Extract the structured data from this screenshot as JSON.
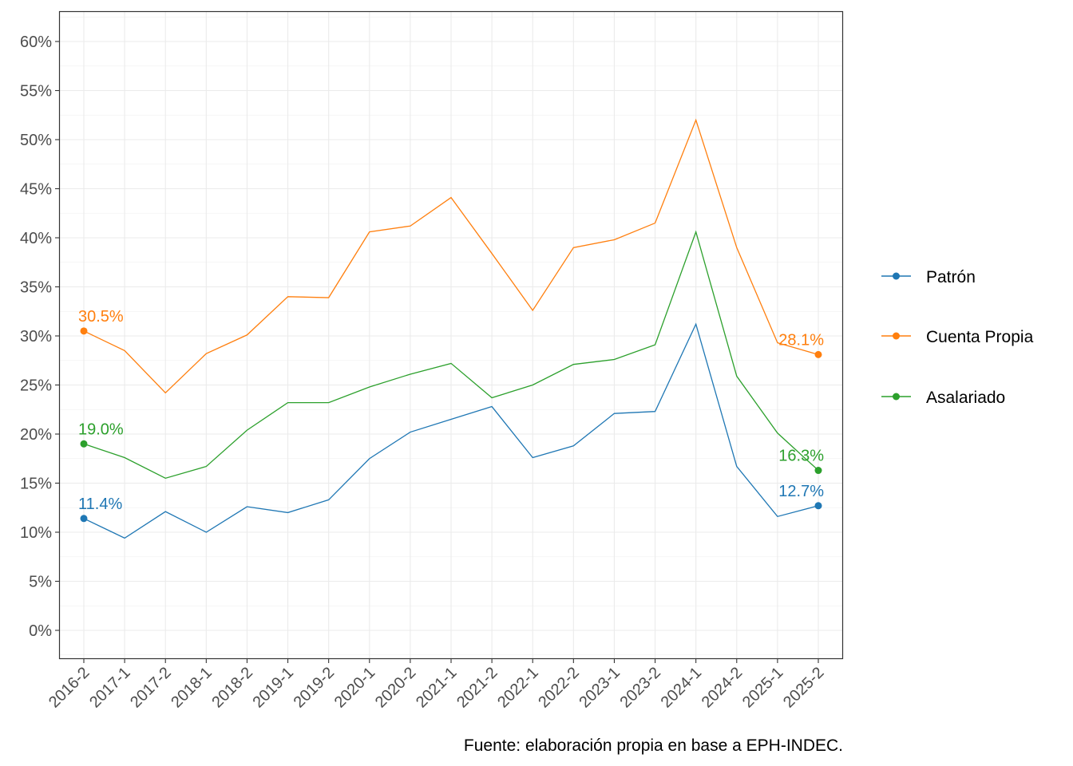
{
  "chart_data": {
    "type": "line",
    "title": "",
    "xlabel": "",
    "ylabel": "",
    "ylim": [
      -2.9,
      63
    ],
    "yticks": [
      0,
      5,
      10,
      15,
      20,
      25,
      30,
      35,
      40,
      45,
      50,
      55,
      60
    ],
    "ytick_labels": [
      "0%",
      "5%",
      "10%",
      "15%",
      "20%",
      "25%",
      "30%",
      "35%",
      "40%",
      "45%",
      "50%",
      "55%",
      "60%"
    ],
    "categories": [
      "2016-2",
      "2017-1",
      "2017-2",
      "2018-1",
      "2018-2",
      "2019-1",
      "2019-2",
      "2020-1",
      "2020-2",
      "2021-1",
      "2021-2",
      "2022-1",
      "2022-2",
      "2023-1",
      "2023-2",
      "2024-1",
      "2024-2",
      "2025-1",
      "2025-2"
    ],
    "grid": true,
    "legend_position": "right",
    "series": [
      {
        "name": "Patrón",
        "color": "#1f77b4",
        "values": [
          11.4,
          9.4,
          12.1,
          10.0,
          12.6,
          12.0,
          13.3,
          17.5,
          20.2,
          21.5,
          22.8,
          17.6,
          18.8,
          22.1,
          22.3,
          31.2,
          16.7,
          11.6,
          12.7
        ],
        "labels": {
          "first": "11.4%",
          "last": "12.7%"
        }
      },
      {
        "name": "Cuenta Propia",
        "color": "#ff7f0e",
        "values": [
          30.5,
          28.5,
          24.2,
          28.2,
          30.1,
          34.0,
          33.9,
          40.6,
          41.2,
          44.1,
          38.4,
          32.6,
          39.0,
          39.8,
          41.5,
          52.0,
          39.0,
          29.3,
          28.1
        ],
        "labels": {
          "first": "30.5%",
          "last": "28.1%"
        }
      },
      {
        "name": "Asalariado",
        "color": "#2ca02c",
        "values": [
          19.0,
          17.6,
          15.5,
          16.7,
          20.4,
          23.2,
          23.2,
          24.8,
          26.1,
          27.2,
          23.7,
          25.0,
          27.1,
          27.6,
          29.1,
          40.6,
          25.9,
          20.1,
          16.3
        ],
        "labels": {
          "first": "19.0%",
          "last": "16.3%"
        }
      }
    ],
    "caption": "Fuente: elaboración propia en base a EPH-INDEC."
  }
}
